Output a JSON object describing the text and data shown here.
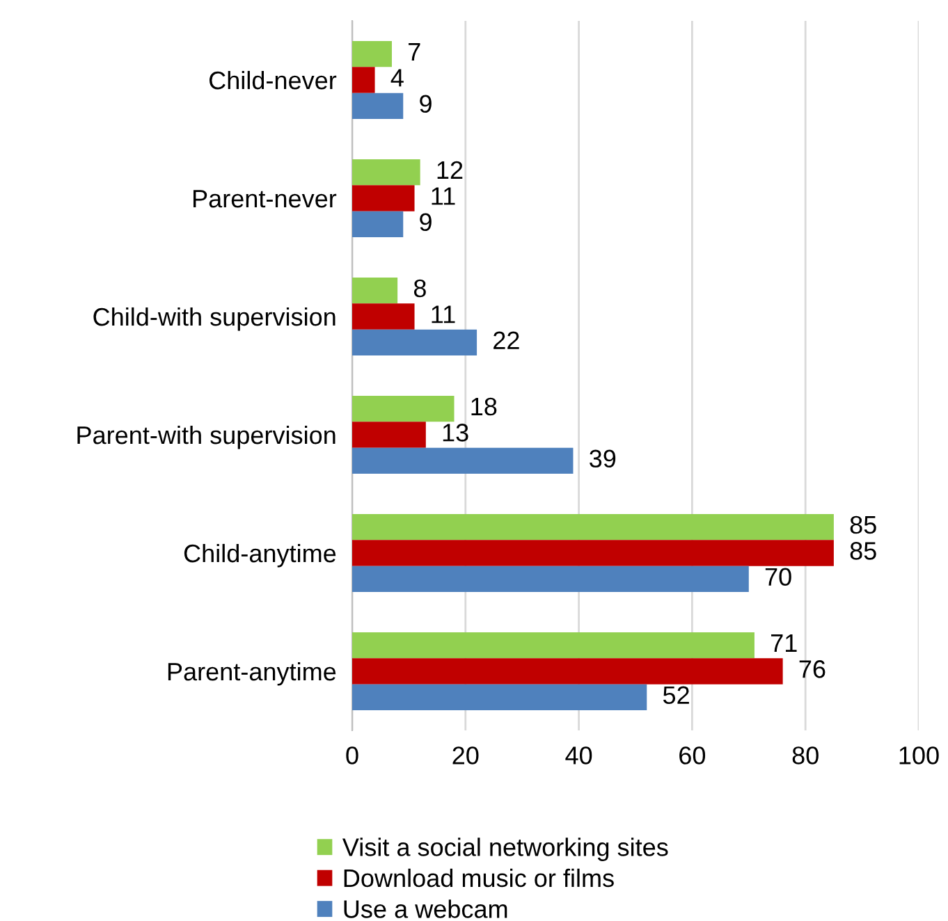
{
  "chart_data": {
    "type": "bar",
    "orientation": "horizontal",
    "categories": [
      "Child-never",
      "Parent-never",
      "Child-with supervision",
      "Parent-with supervision",
      "Child-anytime",
      "Parent-anytime"
    ],
    "series": [
      {
        "name": "Visit a social networking sites",
        "color": "#92d050",
        "values": [
          7,
          12,
          8,
          18,
          85,
          71
        ]
      },
      {
        "name": "Download music or films",
        "color": "#c00000",
        "values": [
          4,
          11,
          11,
          13,
          85,
          76
        ]
      },
      {
        "name": "Use a webcam",
        "color": "#4f81bd",
        "values": [
          9,
          9,
          22,
          39,
          70,
          52
        ]
      }
    ],
    "xlim": [
      0,
      100
    ],
    "xticks": [
      0,
      20,
      40,
      60,
      80,
      100
    ],
    "grid": "x",
    "legend": "bottom",
    "data_labels": true
  }
}
